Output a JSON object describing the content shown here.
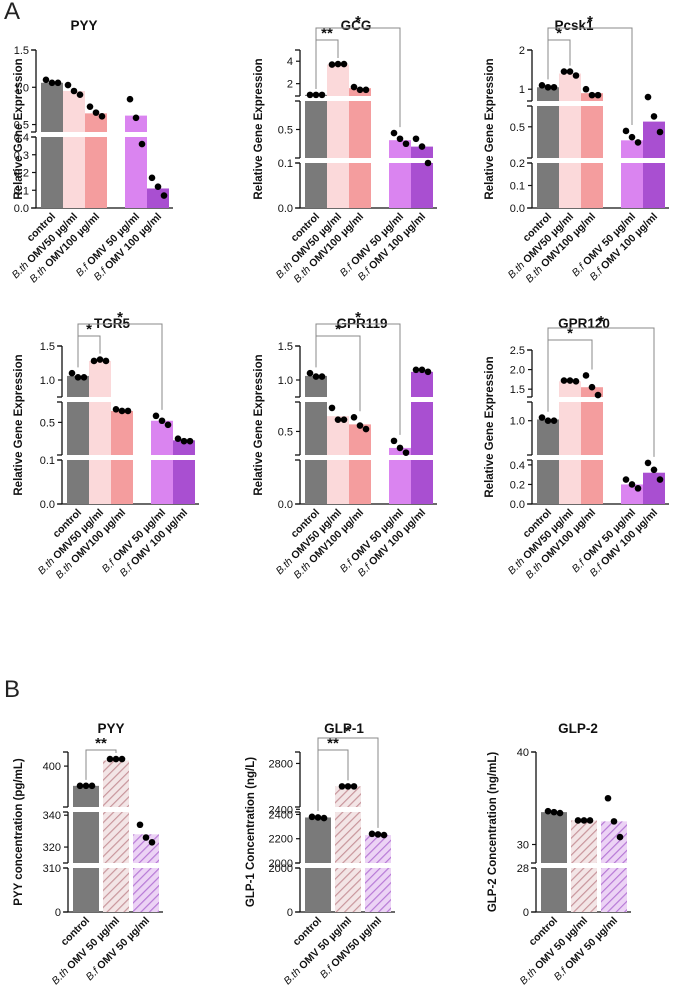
{
  "figure": {
    "panel_a": "A",
    "panel_b": "B"
  },
  "colors": {
    "control": "#7a7a7a",
    "bth50": "#fbd9da",
    "bth100": "#f49d9e",
    "bf50": "#da84f0",
    "bf100": "#a94fd1",
    "hatch": "#c89aa0"
  },
  "chart_data": [
    {
      "id": "pyy_a",
      "type": "bar",
      "title": "PYY",
      "ylabel": "Relative Gene Expression",
      "categories": [
        "control",
        "B.th OMV50 µg/ml",
        "B.th OMV100 µg/ml",
        "B.f OMV 50 µg/ml",
        "B.f OMV 100 µg/ml"
      ],
      "values": [
        1.06,
        0.95,
        0.65,
        0.62,
        0.11
      ],
      "points": [
        [
          1.1,
          1.06,
          1.06
        ],
        [
          1.03,
          0.95,
          0.9
        ],
        [
          0.74,
          0.66,
          0.61
        ],
        [
          0.84,
          0.59,
          0.36
        ],
        [
          0.17,
          0.12,
          0.07
        ]
      ],
      "segments": [
        {
          "range": [
            0,
            0.4
          ],
          "ticks": [
            "0.0",
            "0.1",
            "0.2",
            "0.3",
            "0.4"
          ]
        },
        {
          "range": [
            0.4,
            1.5
          ],
          "ticks": [
            "0.5",
            "1.0",
            "1.5"
          ]
        }
      ],
      "significance": []
    },
    {
      "id": "gcg_a",
      "type": "bar",
      "title": "GCG",
      "ylabel": "Relative Gene Expression",
      "categories": [
        "control",
        "B.th OMV50 µg/ml",
        "B.th OMV100 µg/ml",
        "B.f OMV 50 µg/ml",
        "B.f OMV 100 µg/ml"
      ],
      "values": [
        1.0,
        3.7,
        1.6,
        0.35,
        0.26
      ],
      "points": [
        [
          1.0,
          1.0,
          1.0
        ],
        [
          3.7,
          3.75,
          3.75
        ],
        [
          1.7,
          1.45,
          1.45
        ],
        [
          0.45,
          0.37,
          0.3
        ],
        [
          0.37,
          0.26,
          0.1
        ]
      ],
      "segments": [
        {
          "range": [
            0,
            0.1
          ],
          "ticks": [
            "0.0",
            "0.1"
          ]
        },
        {
          "range": [
            0.1,
            0.9
          ],
          "ticks": [
            "0.5"
          ]
        },
        {
          "range": [
            0.9,
            5
          ],
          "ticks": [
            "2",
            "4"
          ]
        }
      ],
      "significance": [
        {
          "from": 0,
          "to": 1,
          "label": "**"
        },
        {
          "from": 0,
          "to": 3,
          "label": "*"
        }
      ]
    },
    {
      "id": "pcsk1_a",
      "type": "bar",
      "title": "Pcsk1",
      "ylabel": "Relative Gene Expression",
      "categories": [
        "control",
        "B.th OMV50 µg/ml",
        "B.th OMV100 µg/ml",
        "B.f OMV 50 µg/ml",
        "B.f OMV 100 µg/ml"
      ],
      "values": [
        1.05,
        1.4,
        0.9,
        0.37,
        0.55
      ],
      "points": [
        [
          1.1,
          1.05,
          1.05
        ],
        [
          1.45,
          1.45,
          1.35
        ],
        [
          1.0,
          0.85,
          0.85
        ],
        [
          0.46,
          0.4,
          0.35
        ],
        [
          0.8,
          0.6,
          0.45
        ]
      ],
      "segments": [
        {
          "range": [
            0,
            0.2
          ],
          "ticks": [
            "0.0",
            "0.1",
            "0.2"
          ]
        },
        {
          "range": [
            0.2,
            0.7
          ],
          "ticks": [
            "0.5"
          ]
        },
        {
          "range": [
            0.7,
            2
          ],
          "ticks": [
            "1",
            "2"
          ]
        }
      ],
      "significance": [
        {
          "from": 0,
          "to": 1,
          "label": "*"
        },
        {
          "from": 0,
          "to": 3,
          "label": "*"
        }
      ]
    },
    {
      "id": "tgr5_a",
      "type": "bar",
      "title": "TGR5",
      "ylabel": "Relative Gene Expression",
      "categories": [
        "control",
        "B.th OMV50 µg/ml",
        "B.th OMV100 µg/ml",
        "B.f OMV 50 µg/ml",
        "B.f OMV 100 µg/ml"
      ],
      "values": [
        1.06,
        1.28,
        0.64,
        0.52,
        0.28
      ],
      "points": [
        [
          1.1,
          1.04,
          1.04
        ],
        [
          1.28,
          1.3,
          1.28
        ],
        [
          0.66,
          0.64,
          0.64
        ],
        [
          0.58,
          0.52,
          0.47
        ],
        [
          0.3,
          0.27,
          0.27
        ]
      ],
      "segments": [
        {
          "range": [
            0,
            0.1
          ],
          "ticks": [
            "0.0",
            "0.1"
          ]
        },
        {
          "range": [
            0.1,
            0.75
          ],
          "ticks": [
            "0.5"
          ]
        },
        {
          "range": [
            0.75,
            1.5
          ],
          "ticks": [
            "1.0",
            "1.5"
          ]
        }
      ],
      "significance": [
        {
          "from": 0,
          "to": 1,
          "label": "*"
        },
        {
          "from": 0,
          "to": 3,
          "label": "*"
        }
      ]
    },
    {
      "id": "gpr119_a",
      "type": "bar",
      "title": "GPR119",
      "ylabel": "Relative Gene Expression",
      "categories": [
        "control",
        "B.th OMV50 µg/ml",
        "B.th OMV100 µg/ml",
        "B.f OMV 50 µg/ml",
        "B.f OMV 100 µg/ml"
      ],
      "values": [
        1.06,
        0.63,
        0.56,
        0.36,
        1.12
      ],
      "points": [
        [
          1.1,
          1.05,
          1.05
        ],
        [
          0.7,
          0.6,
          0.6
        ],
        [
          0.62,
          0.55,
          0.52
        ],
        [
          0.42,
          0.36,
          0.32
        ],
        [
          1.15,
          1.15,
          1.12
        ]
      ],
      "segments": [
        {
          "range": [
            0,
            0.3
          ],
          "ticks": [
            "0.0"
          ]
        },
        {
          "range": [
            0.3,
            0.75
          ],
          "ticks": [
            "0.5"
          ]
        },
        {
          "range": [
            0.75,
            1.5
          ],
          "ticks": [
            "1.0",
            "1.5"
          ]
        }
      ],
      "significance": [
        {
          "from": 0,
          "to": 2,
          "label": "*"
        },
        {
          "from": 0,
          "to": 3,
          "label": "*"
        }
      ]
    },
    {
      "id": "gpr120_a",
      "type": "bar",
      "title": "GPR120",
      "ylabel": "Relative Gene Expression",
      "categories": [
        "control",
        "B.th OMV50 µg/ml",
        "B.th OMV100 µg/ml",
        "B.f OMV 50 µg/ml",
        "B.f OMV 100 µg/ml"
      ],
      "values": [
        1.02,
        1.7,
        1.55,
        0.2,
        0.32
      ],
      "points": [
        [
          1.05,
          1.0,
          1.0
        ],
        [
          1.72,
          1.72,
          1.7
        ],
        [
          1.85,
          1.55,
          1.35
        ],
        [
          0.25,
          0.2,
          0.16
        ],
        [
          0.42,
          0.35,
          0.25
        ]
      ],
      "segments": [
        {
          "range": [
            0,
            0.45
          ],
          "ticks": [
            "0.0",
            "0.2",
            "0.4"
          ]
        },
        {
          "range": [
            0.45,
            1.3
          ],
          "ticks": [
            "1.0"
          ]
        },
        {
          "range": [
            1.3,
            2.5
          ],
          "ticks": [
            "1.5",
            "2.0",
            "2.5"
          ]
        }
      ],
      "significance": [
        {
          "from": 0,
          "to": 2,
          "label": "*"
        },
        {
          "from": 0,
          "to": 4,
          "label": "*"
        }
      ]
    },
    {
      "id": "pyy_b",
      "type": "bar",
      "title": "PYY",
      "ylabel": "PYY concentration (pg/mL)",
      "categories": [
        "control",
        "B.th OMV 50 µg/ml",
        "B.f OMV 50 µg/ml"
      ],
      "values": [
        372,
        408,
        328
      ],
      "points": [
        [
          372,
          372,
          372
        ],
        [
          410,
          410,
          410
        ],
        [
          334,
          326,
          323
        ]
      ],
      "segments": [
        {
          "range": [
            0,
            310
          ],
          "ticks": [
            "0",
            "310"
          ]
        },
        {
          "range": [
            310,
            342
          ],
          "ticks": [
            "320",
            "340"
          ]
        },
        {
          "range": [
            342,
            420
          ],
          "ticks": [
            "400"
          ]
        }
      ],
      "significance": [
        {
          "from": 0,
          "to": 1,
          "label": "**"
        }
      ]
    },
    {
      "id": "glp1_b",
      "type": "bar",
      "title": "GLP-1",
      "ylabel": "GLP-1 Concentration (ng/L)",
      "categories": [
        "control",
        "B.th OMV 50 µg/ml",
        "B.f OMV50 µg/ml"
      ],
      "values": [
        2375,
        2600,
        2230
      ],
      "points": [
        [
          2380,
          2375,
          2370
        ],
        [
          2600,
          2600,
          2600
        ],
        [
          2240,
          2235,
          2230
        ]
      ],
      "segments": [
        {
          "range": [
            0,
            2000
          ],
          "ticks": [
            "0",
            "2000"
          ]
        },
        {
          "range": [
            2000,
            2420
          ],
          "ticks": [
            "2000",
            "2200",
            "2400"
          ]
        },
        {
          "range": [
            2420,
            2900
          ],
          "ticks": [
            "2400",
            "2800"
          ]
        }
      ],
      "significance": [
        {
          "from": 0,
          "to": 1,
          "label": "**"
        },
        {
          "from": 0,
          "to": 2,
          "label": "*"
        }
      ]
    },
    {
      "id": "glp2_b",
      "type": "bar",
      "title": "GLP-2",
      "ylabel": "GLP-2 Concentration (ng/mL)",
      "categories": [
        "control",
        "B.th OMV 50 µg/ml",
        "B.f OMV 50 µg/ml"
      ],
      "values": [
        33.5,
        32.6,
        32.5
      ],
      "points": [
        [
          33.6,
          33.5,
          33.4
        ],
        [
          32.6,
          32.6,
          32.6
        ],
        [
          35.0,
          32.5,
          30.8
        ]
      ],
      "segments": [
        {
          "range": [
            0,
            28
          ],
          "ticks": [
            "0",
            "28"
          ]
        },
        {
          "range": [
            28,
            40
          ],
          "ticks": [
            "30",
            "40"
          ]
        }
      ],
      "significance": []
    }
  ]
}
